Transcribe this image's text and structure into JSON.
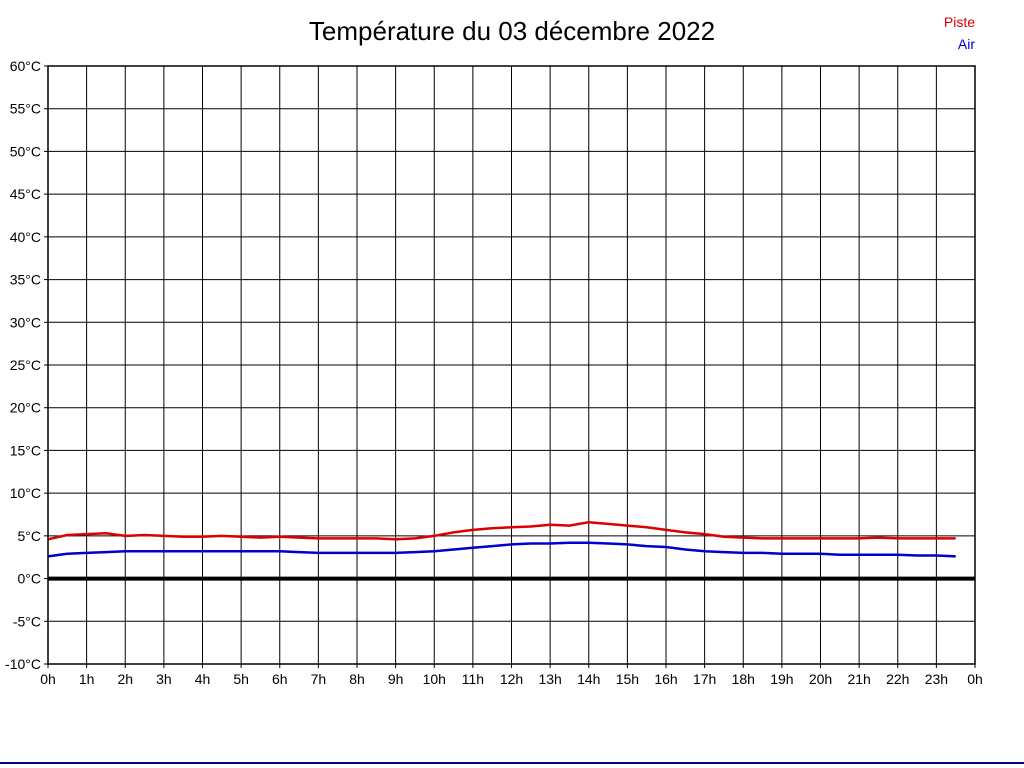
{
  "title": "Température du 03 décembre 2022",
  "legend": {
    "items": [
      {
        "label": "Piste",
        "color": "#dd0000"
      },
      {
        "label": "Air",
        "color": "#0000cc"
      }
    ]
  },
  "colors": {
    "grid": "#000000",
    "zero_line": "#000000",
    "footer_rule": "#000080",
    "piste_red": "#dd0000",
    "air_blue": "#0000cc"
  },
  "chart_data": {
    "type": "line",
    "title": "Température du 03 décembre 2022",
    "xlabel": "",
    "ylabel": "",
    "xlim": [
      0,
      24
    ],
    "ylim": [
      -10,
      60
    ],
    "y_tick_step": 5,
    "grid": true,
    "zero_line_value": 0,
    "legend_position": "top-right",
    "x_tick_labels": [
      "0h",
      "1h",
      "2h",
      "3h",
      "4h",
      "5h",
      "6h",
      "7h",
      "8h",
      "9h",
      "10h",
      "11h",
      "12h",
      "13h",
      "14h",
      "15h",
      "16h",
      "17h",
      "18h",
      "19h",
      "20h",
      "21h",
      "22h",
      "23h",
      "0h"
    ],
    "y_tick_labels": [
      "60°C",
      "55°C",
      "50°C",
      "45°C",
      "40°C",
      "35°C",
      "30°C",
      "25°C",
      "20°C",
      "15°C",
      "10°C",
      "5°C",
      "0°C",
      "-5°C",
      "-10°C"
    ],
    "x": [
      0,
      0.5,
      1,
      1.5,
      2,
      2.5,
      3,
      3.5,
      4,
      4.5,
      5,
      5.5,
      6,
      6.5,
      7,
      7.5,
      8,
      8.5,
      9,
      9.5,
      10,
      10.5,
      11,
      11.5,
      12,
      12.5,
      13,
      13.5,
      14,
      14.5,
      15,
      15.5,
      16,
      16.5,
      17,
      17.5,
      18,
      18.5,
      19,
      19.5,
      20,
      20.5,
      21,
      21.5,
      22,
      22.5,
      23,
      23.5
    ],
    "series": [
      {
        "name": "Piste",
        "color": "#dd0000",
        "values": [
          4.6,
          5.1,
          5.2,
          5.3,
          5.0,
          5.1,
          5.0,
          4.9,
          4.9,
          5.0,
          4.9,
          4.8,
          4.9,
          4.8,
          4.7,
          4.7,
          4.7,
          4.7,
          4.6,
          4.7,
          5.0,
          5.4,
          5.7,
          5.9,
          6.0,
          6.1,
          6.3,
          6.2,
          6.6,
          6.4,
          6.2,
          6.0,
          5.7,
          5.4,
          5.2,
          4.9,
          4.8,
          4.7,
          4.7,
          4.7,
          4.7,
          4.7,
          4.7,
          4.8,
          4.7,
          4.7,
          4.7,
          4.7
        ]
      },
      {
        "name": "Air",
        "color": "#0000cc",
        "values": [
          2.6,
          2.9,
          3.0,
          3.1,
          3.2,
          3.2,
          3.2,
          3.2,
          3.2,
          3.2,
          3.2,
          3.2,
          3.2,
          3.1,
          3.0,
          3.0,
          3.0,
          3.0,
          3.0,
          3.1,
          3.2,
          3.4,
          3.6,
          3.8,
          4.0,
          4.1,
          4.1,
          4.2,
          4.2,
          4.1,
          4.0,
          3.8,
          3.7,
          3.4,
          3.2,
          3.1,
          3.0,
          3.0,
          2.9,
          2.9,
          2.9,
          2.8,
          2.8,
          2.8,
          2.8,
          2.7,
          2.7,
          2.6
        ]
      }
    ]
  }
}
